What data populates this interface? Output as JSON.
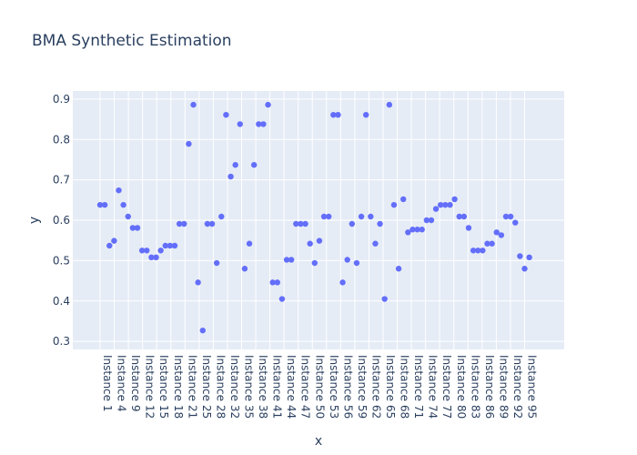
{
  "chart_data": {
    "type": "scatter",
    "title": "BMA Synthetic Estimation",
    "xlabel": "x",
    "ylabel": "y",
    "ylim": [
      0.28,
      0.92
    ],
    "yticks": [
      0.3,
      0.4,
      0.5,
      0.6,
      0.7,
      0.8,
      0.9
    ],
    "xtick_labels": [
      "Instance 1",
      "Instance 4",
      "Instance 9",
      "Instance 12",
      "Instance 15",
      "Instance 18",
      "Instance 21",
      "Instance 25",
      "Instance 28",
      "Instance 32",
      "Instance 35",
      "Instance 38",
      "Instance 41",
      "Instance 44",
      "Instance 47",
      "Instance 50",
      "Instance 53",
      "Instance 56",
      "Instance 59",
      "Instance 62",
      "Instance 65",
      "Instance 68",
      "Instance 71",
      "Instance 74",
      "Instance 77",
      "Instance 80",
      "Instance 83",
      "Instance 86",
      "Instance 89",
      "Instance 92",
      "Instance 95"
    ],
    "xtick_positions": [
      0,
      2,
      4,
      6,
      8,
      10,
      12,
      14,
      16,
      18,
      20,
      22,
      24,
      26,
      28,
      30,
      32,
      34,
      36,
      38,
      40,
      42,
      44,
      46,
      48,
      50,
      52,
      54,
      56,
      58,
      60
    ],
    "grid": true,
    "marker_color": "#636efa",
    "background": "#e5ecf6",
    "values": [
      0.638,
      0.638,
      0.537,
      0.549,
      0.674,
      0.638,
      0.609,
      0.581,
      0.581,
      0.525,
      0.525,
      0.508,
      0.508,
      0.525,
      0.537,
      0.537,
      0.537,
      0.591,
      0.591,
      0.789,
      0.886,
      0.446,
      0.327,
      0.591,
      0.591,
      0.494,
      0.609,
      0.861,
      0.708,
      0.737,
      0.838,
      0.48,
      0.542,
      0.737,
      0.838,
      0.838,
      0.886,
      0.446,
      0.446,
      0.405,
      0.502,
      0.502,
      0.591,
      0.591,
      0.591,
      0.542,
      0.494,
      0.549,
      0.609,
      0.609,
      0.861,
      0.861,
      0.446,
      0.502,
      0.591,
      0.494,
      0.609,
      0.861,
      0.609,
      0.542,
      0.591,
      0.405,
      0.886,
      0.638,
      0.48,
      0.652,
      0.57,
      0.577,
      0.577,
      0.577,
      0.6,
      0.6,
      0.628,
      0.638,
      0.638,
      0.638,
      0.652,
      0.609,
      0.609,
      0.581,
      0.525,
      0.525,
      0.525,
      0.542,
      0.542,
      0.57,
      0.563,
      0.609,
      0.609,
      0.594,
      0.511,
      0.48,
      0.508
    ]
  }
}
